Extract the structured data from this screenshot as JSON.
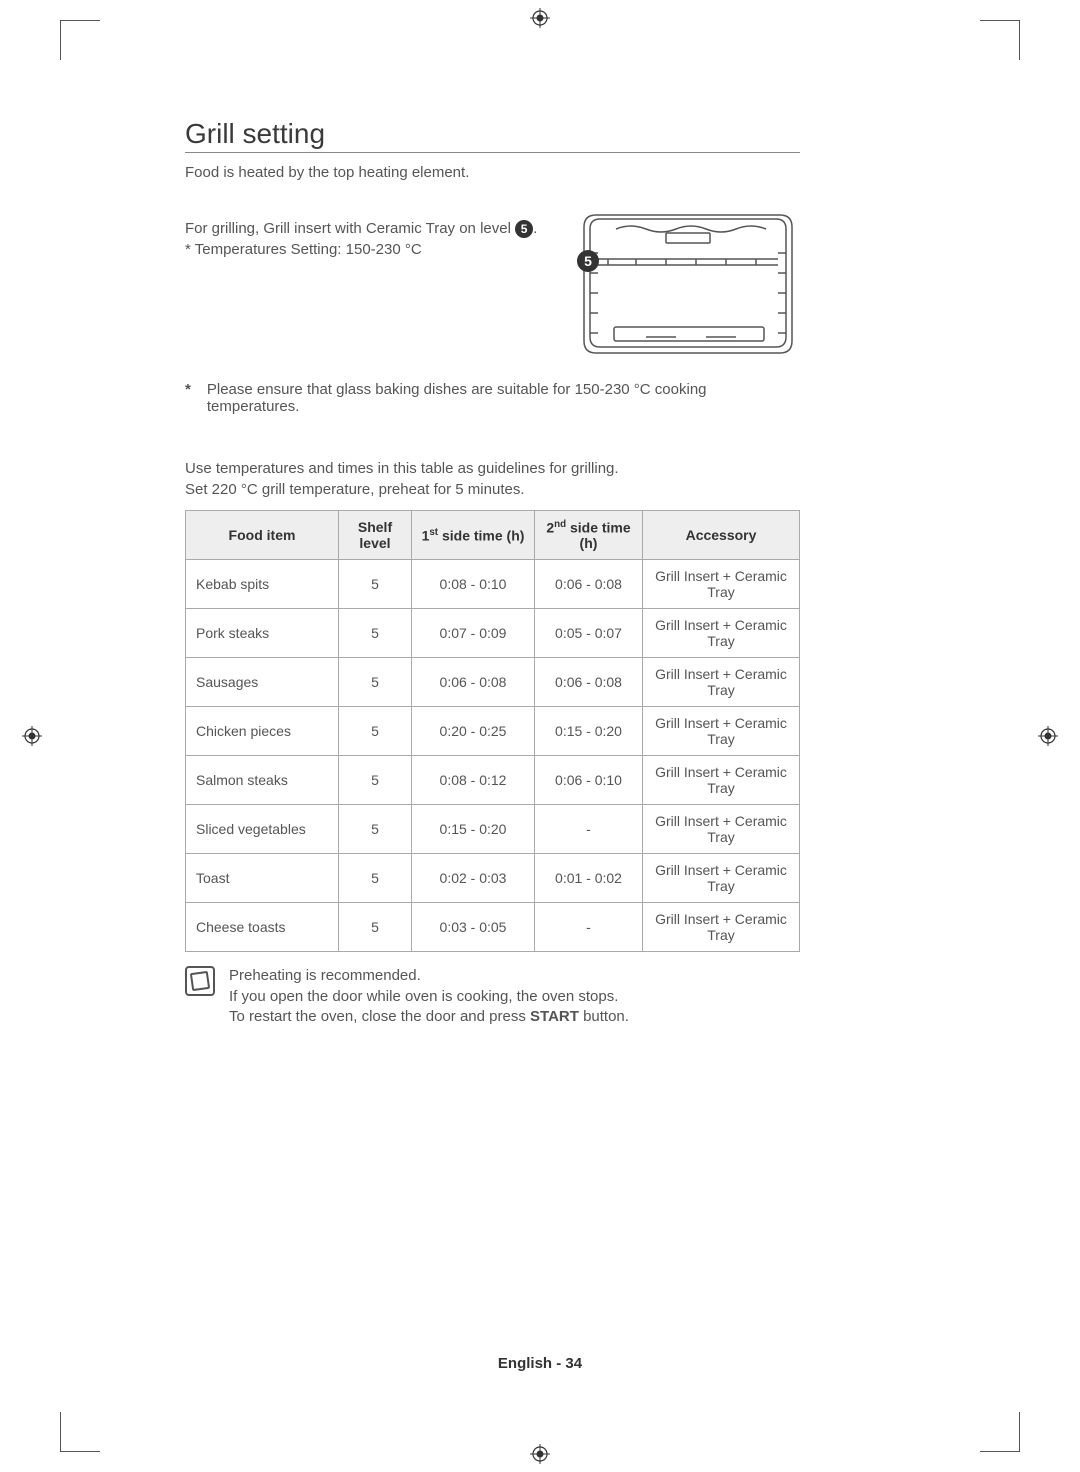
{
  "title": "Grill setting",
  "intro": "Food is heated by the top heating element.",
  "grill_line_prefix": "For grilling, Grill insert with Ceramic Tray on level ",
  "grill_level": "5",
  "temp_line": "* Temperatures Setting: 150-230 °C",
  "glass_note": "Please ensure that glass baking dishes are suitable for 150-230 °C cooking temperatures.",
  "guideline_1": "Use temperatures and times in this table as guidelines for grilling.",
  "guideline_2": "Set 220 °C grill temperature, preheat for 5 minutes.",
  "table": {
    "headers": {
      "food": "Food item",
      "shelf": "Shelf level",
      "side1_pre": "1",
      "side1_sup": "st",
      "side1_post": " side time (h)",
      "side2_pre": "2",
      "side2_sup": "nd",
      "side2_post": " side time (h)",
      "accessory": "Accessory"
    },
    "rows": [
      {
        "food": "Kebab spits",
        "shelf": "5",
        "s1": "0:08 - 0:10",
        "s2": "0:06 - 0:08",
        "acc": "Grill Insert + Ceramic Tray"
      },
      {
        "food": "Pork steaks",
        "shelf": "5",
        "s1": "0:07 - 0:09",
        "s2": "0:05 - 0:07",
        "acc": "Grill Insert + Ceramic Tray"
      },
      {
        "food": "Sausages",
        "shelf": "5",
        "s1": "0:06 - 0:08",
        "s2": "0:06 - 0:08",
        "acc": "Grill Insert + Ceramic Tray"
      },
      {
        "food": "Chicken pieces",
        "shelf": "5",
        "s1": "0:20 - 0:25",
        "s2": "0:15 - 0:20",
        "acc": "Grill Insert + Ceramic Tray"
      },
      {
        "food": "Salmon steaks",
        "shelf": "5",
        "s1": "0:08 - 0:12",
        "s2": "0:06 - 0:10",
        "acc": "Grill Insert + Ceramic Tray"
      },
      {
        "food": "Sliced vegetables",
        "shelf": "5",
        "s1": "0:15 - 0:20",
        "s2": "-",
        "acc": "Grill Insert + Ceramic Tray"
      },
      {
        "food": "Toast",
        "shelf": "5",
        "s1": "0:02 - 0:03",
        "s2": "0:01 - 0:02",
        "acc": "Grill Insert + Ceramic Tray"
      },
      {
        "food": "Cheese toasts",
        "shelf": "5",
        "s1": "0:03 - 0:05",
        "s2": "-",
        "acc": "Grill Insert + Ceramic Tray"
      }
    ]
  },
  "info_1": "Preheating is recommended.",
  "info_2": "If you open the door while oven is cooking, the oven stops.",
  "info_3_pre": "To restart the oven, close the door and press ",
  "info_3_bold": "START",
  "info_3_post": " button.",
  "footer": "English - 34",
  "diagram": {
    "stroke": "#555",
    "badge_fill": "#333",
    "badge_text_color": "#fff",
    "badge_label": "5"
  }
}
